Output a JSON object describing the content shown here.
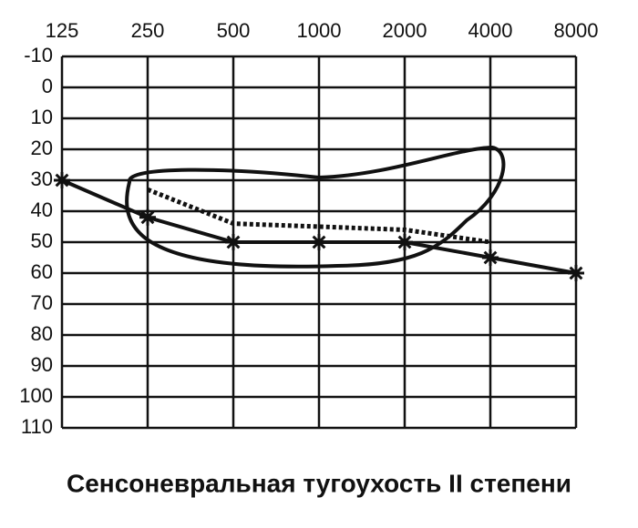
{
  "chart_data": {
    "type": "line",
    "title": "Сенсоневральная тугоухость II степени",
    "categories": [
      "125",
      "250",
      "500",
      "1000",
      "2000",
      "4000",
      "8000"
    ],
    "series": [
      {
        "color": "#111111",
        "dash": "solid",
        "marker": "star",
        "values": [
          30,
          42,
          50,
          50,
          50,
          55,
          60
        ]
      },
      {
        "color": "#111111",
        "dash": "dotted",
        "marker": "none",
        "values": [
          null,
          33,
          44,
          45,
          46,
          50,
          null
        ]
      }
    ],
    "ylim": [
      -10,
      110
    ],
    "y_inverted": true,
    "yticks": [
      -10,
      0,
      10,
      20,
      30,
      40,
      50,
      60,
      70,
      80,
      90,
      100,
      110
    ],
    "grid": true
  }
}
